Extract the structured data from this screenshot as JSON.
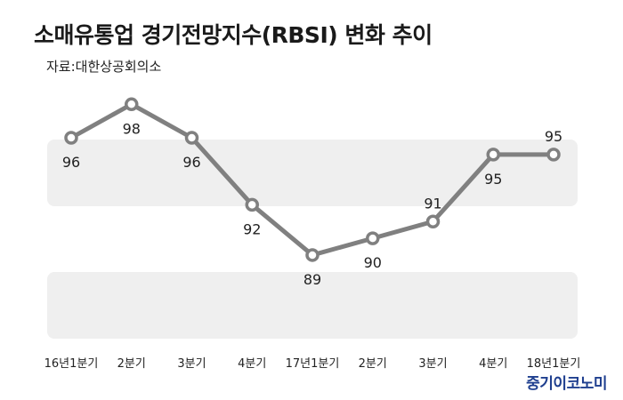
{
  "title": "소매유통업 경기전망지수(RBSI) 변화 추이",
  "source": "자료:대한상공회의소",
  "logo": "중기이코노미",
  "colors": {
    "line": "#808080",
    "band": "#efefef",
    "marker_fill": "#ffffff",
    "text": "#222222",
    "logo": "#1f3f8f"
  },
  "chart_data": {
    "type": "line",
    "title": "소매유통업 경기전망지수(RBSI) 변화 추이",
    "categories": [
      "16년1분기",
      "2분기",
      "3분기",
      "4분기",
      "17년1분기",
      "2분기",
      "3분기",
      "4분기",
      "18년1분기"
    ],
    "values": [
      96,
      98,
      96,
      92,
      89,
      90,
      91,
      95,
      95
    ],
    "label_positions": [
      "below",
      "below",
      "below",
      "below",
      "below",
      "below",
      "above",
      "below",
      "above"
    ],
    "xlabel": "",
    "ylabel": "",
    "grid": false,
    "legend": "none"
  }
}
